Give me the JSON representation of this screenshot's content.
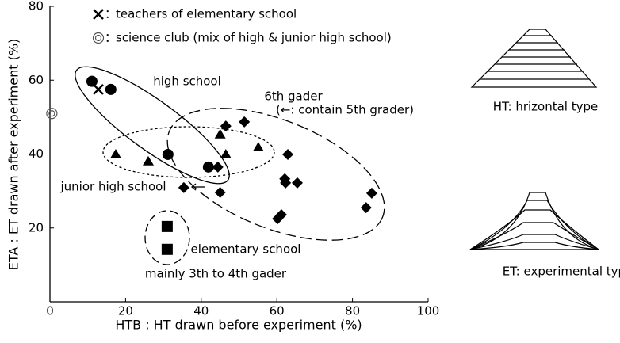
{
  "chart_data": {
    "type": "scatter",
    "xlabel": "HTB : HT drawn before experiment (%)",
    "ylabel": "ETA : ET drawn after experiment (%)",
    "xlim": [
      0,
      100
    ],
    "ylim": [
      0,
      80
    ],
    "xticks": [
      0,
      20,
      40,
      60,
      80,
      100
    ],
    "yticks": [
      20,
      40,
      60,
      80
    ],
    "legend_separator": "：",
    "series": [
      {
        "marker": "circle",
        "color": "#000000",
        "x": [
          11.1,
          16.1,
          31.2,
          41.9
        ],
        "values": [
          59.7,
          57.5,
          39.9,
          36.5
        ]
      },
      {
        "name": "teachers of elementary school",
        "marker": "cross",
        "color": "#000000",
        "x": [
          12.8
        ],
        "values": [
          57.5
        ]
      },
      {
        "name": "science club (mix of high & junior high school)",
        "marker": "doublecircle",
        "color": "#555555",
        "x": [
          0.5
        ],
        "values": [
          51
        ]
      },
      {
        "marker": "triangle",
        "color": "#000000",
        "x": [
          17.4,
          26,
          45,
          46.5,
          55.1
        ],
        "values": [
          39.9,
          38,
          45.3,
          39.9,
          41.8
        ]
      },
      {
        "marker": "diamond",
        "color": "#000000",
        "x": [
          35.4,
          44.4,
          45,
          46.5,
          51.4,
          62.9,
          62.1,
          62.3,
          65.4,
          60.2,
          61.2,
          83.6,
          85.1
        ],
        "values": [
          30.9,
          36.5,
          29.6,
          47.6,
          48.7,
          39.9,
          33.3,
          32.2,
          32.2,
          22.5,
          23.6,
          25.5,
          29.4
        ]
      },
      {
        "marker": "square",
        "color": "#000000",
        "x": [
          31,
          31
        ],
        "values": [
          20.4,
          14.2
        ]
      }
    ],
    "annotations": [
      "high school",
      "6th gader",
      "(←: contain 5th grader)",
      "junior high school",
      "elementary school",
      "mainly 3th to 4th gader"
    ]
  },
  "side_panels": [
    {
      "caption": "HT: hrizontal type"
    },
    {
      "caption": "ET: experimental type"
    }
  ]
}
